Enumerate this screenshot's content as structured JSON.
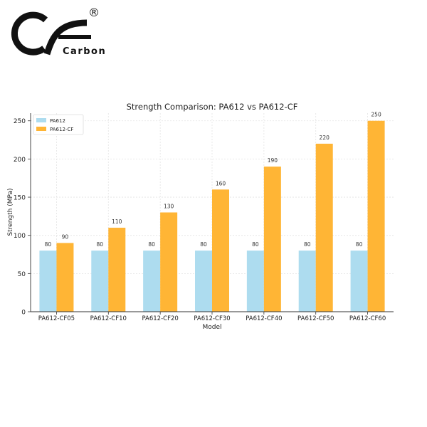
{
  "brand": {
    "name": "Carbon",
    "symbol": "®"
  },
  "chart_data": {
    "type": "bar",
    "title": "Strength Comparison: PA612 vs PA612-CF",
    "xlabel": "Model",
    "ylabel": "Strength (MPa)",
    "categories": [
      "PA612-CF05",
      "PA612-CF10",
      "PA612-CF20",
      "PA612-CF30",
      "PA612-CF40",
      "PA612-CF50",
      "PA612-CF60"
    ],
    "series": [
      {
        "name": "PA612",
        "color": "#ADDCEF",
        "values": [
          80,
          80,
          80,
          80,
          80,
          80,
          80
        ]
      },
      {
        "name": "PA612-CF",
        "color": "#FFB535",
        "values": [
          90,
          110,
          130,
          160,
          190,
          220,
          250
        ]
      }
    ],
    "ylim": [
      0,
      260
    ],
    "yticks": [
      0,
      50,
      100,
      150,
      200,
      250
    ],
    "grid": true,
    "legend": "top-left"
  }
}
